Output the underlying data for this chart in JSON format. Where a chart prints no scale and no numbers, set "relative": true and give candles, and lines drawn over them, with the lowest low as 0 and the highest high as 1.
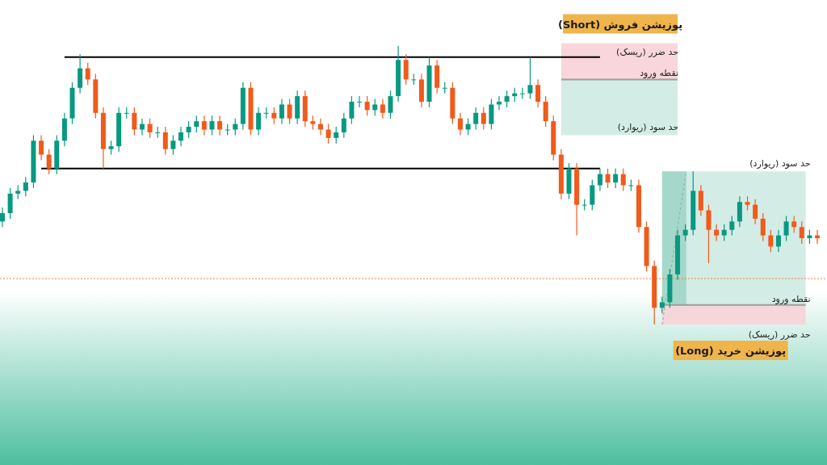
{
  "chart_data": {
    "type": "candlestick",
    "relative": true,
    "categories": [
      null,
      null,
      null,
      null,
      null,
      null,
      null,
      null,
      null,
      null,
      null,
      null,
      null,
      null,
      null,
      null,
      null,
      null,
      null,
      null,
      null,
      null,
      null,
      null,
      null,
      null,
      null,
      null,
      null,
      null,
      null,
      null,
      null,
      null,
      null,
      null,
      null,
      null,
      null,
      null,
      null,
      null,
      null,
      null,
      null,
      null,
      null,
      null,
      null,
      null,
      null,
      null,
      null,
      null,
      null,
      null,
      null,
      null,
      null,
      null,
      null,
      null,
      null,
      null,
      null,
      null,
      null,
      null,
      null,
      null,
      null,
      null,
      null,
      null,
      null,
      null,
      null,
      null,
      null,
      null,
      null,
      null,
      null,
      null,
      null,
      null,
      null,
      null,
      null,
      null,
      null,
      null,
      null,
      null,
      null,
      null,
      null,
      null,
      null,
      null,
      null,
      null,
      null,
      null,
      null,
      null
    ],
    "series": [
      {
        "colors": [
          "#089981",
          "#089981",
          "#089981",
          "#089981",
          "#089981",
          "#f05a1a",
          "#f05a1a",
          "#089981",
          "#089981",
          "#089981",
          "#089981",
          "#f05a1a",
          "#f05a1a",
          "#f05a1a",
          "#089981",
          "#089981",
          "#089981",
          "#f05a1a",
          "#089981",
          "#f05a1a",
          "#089981",
          "#f05a1a",
          "#089981",
          "#089981",
          "#089981",
          "#089981",
          "#f05a1a",
          "#089981",
          "#f05a1a",
          "#089981",
          "#089981",
          "#089981",
          "#f05a1a",
          "#089981",
          "#089981",
          "#f05a1a",
          "#089981",
          "#f05a1a",
          "#089981",
          "#f05a1a",
          "#f05a1a",
          "#f05a1a",
          "#f05a1a",
          "#089981",
          "#089981",
          "#089981",
          "#089981",
          "#f05a1a",
          "#089981",
          "#f05a1a",
          "#089981",
          "#089981",
          "#f05a1a",
          "#089981",
          "#f05a1a",
          "#089981",
          "#f05a1a",
          "#089981",
          "#f05a1a",
          "#f05a1a",
          "#089981",
          "#089981",
          "#f05a1a",
          "#089981",
          "#089981",
          "#089981",
          "#089981",
          "#089981",
          "#089981",
          "#f05a1a",
          "#f05a1a",
          "#f05a1a",
          "#f05a1a",
          "#089981",
          "#f05a1a",
          "#089981",
          "#089981",
          "#089981",
          "#f05a1a",
          "#089981",
          "#f05a1a",
          "#089981",
          "#f05a1a",
          "#f05a1a",
          "#f05a1a",
          "#089981",
          "#089981",
          "#089981",
          "#089981",
          "#089981",
          "#f05a1a",
          "#f05a1a",
          "#f05a1a",
          "#089981",
          "#089981",
          "#089981",
          "#f05a1a",
          "#f05a1a",
          "#f05a1a",
          "#f05a1a",
          "#089981",
          "#089981",
          "#f05a1a",
          "#f05a1a",
          "#089981",
          "#f05a1a"
        ],
        "ohlc": [
          [
            0.37,
            0.42,
            0.35,
            0.4
          ],
          [
            0.4,
            0.49,
            0.38,
            0.47
          ],
          [
            0.47,
            0.5,
            0.45,
            0.48
          ],
          [
            0.48,
            0.53,
            0.46,
            0.51
          ],
          [
            0.51,
            0.68,
            0.49,
            0.66
          ],
          [
            0.66,
            0.68,
            0.59,
            0.61
          ],
          [
            0.61,
            0.63,
            0.54,
            0.56
          ],
          [
            0.56,
            0.68,
            0.54,
            0.66
          ],
          [
            0.66,
            0.76,
            0.64,
            0.74
          ],
          [
            0.74,
            0.87,
            0.72,
            0.85
          ],
          [
            0.85,
            0.97,
            0.83,
            0.92
          ],
          [
            0.92,
            0.94,
            0.86,
            0.88
          ],
          [
            0.88,
            0.9,
            0.74,
            0.76
          ],
          [
            0.76,
            0.78,
            0.56,
            0.63
          ],
          [
            0.63,
            0.66,
            0.61,
            0.64
          ],
          [
            0.64,
            0.78,
            0.62,
            0.76
          ],
          [
            0.76,
            0.78,
            0.74,
            0.76
          ],
          [
            0.76,
            0.78,
            0.68,
            0.7
          ],
          [
            0.7,
            0.74,
            0.68,
            0.72
          ],
          [
            0.72,
            0.74,
            0.67,
            0.69
          ],
          [
            0.69,
            0.71,
            0.67,
            0.69
          ],
          [
            0.69,
            0.71,
            0.61,
            0.63
          ],
          [
            0.63,
            0.68,
            0.61,
            0.66
          ],
          [
            0.66,
            0.71,
            0.64,
            0.69
          ],
          [
            0.69,
            0.73,
            0.67,
            0.71
          ],
          [
            0.71,
            0.75,
            0.69,
            0.73
          ],
          [
            0.73,
            0.75,
            0.68,
            0.7
          ],
          [
            0.7,
            0.75,
            0.68,
            0.73
          ],
          [
            0.73,
            0.75,
            0.68,
            0.7
          ],
          [
            0.7,
            0.72,
            0.68,
            0.7
          ],
          [
            0.7,
            0.74,
            0.68,
            0.72
          ],
          [
            0.72,
            0.87,
            0.7,
            0.85
          ],
          [
            0.85,
            0.87,
            0.68,
            0.7
          ],
          [
            0.7,
            0.78,
            0.68,
            0.76
          ],
          [
            0.76,
            0.78,
            0.74,
            0.76
          ],
          [
            0.76,
            0.78,
            0.72,
            0.74
          ],
          [
            0.74,
            0.81,
            0.72,
            0.79
          ],
          [
            0.79,
            0.81,
            0.72,
            0.74
          ],
          [
            0.74,
            0.84,
            0.72,
            0.82
          ],
          [
            0.82,
            0.84,
            0.71,
            0.73
          ],
          [
            0.73,
            0.75,
            0.7,
            0.72
          ],
          [
            0.72,
            0.74,
            0.68,
            0.7
          ],
          [
            0.7,
            0.72,
            0.65,
            0.67
          ],
          [
            0.67,
            0.71,
            0.65,
            0.69
          ],
          [
            0.69,
            0.76,
            0.67,
            0.74
          ],
          [
            0.74,
            0.82,
            0.72,
            0.8
          ],
          [
            0.8,
            0.82,
            0.78,
            0.8
          ],
          [
            0.8,
            0.82,
            0.75,
            0.77
          ],
          [
            0.77,
            0.81,
            0.75,
            0.79
          ],
          [
            0.79,
            0.81,
            0.74,
            0.76
          ],
          [
            0.76,
            0.84,
            0.74,
            0.82
          ],
          [
            0.82,
            1.0,
            0.8,
            0.95
          ],
          [
            0.95,
            0.97,
            0.86,
            0.88
          ],
          [
            0.88,
            0.9,
            0.86,
            0.88
          ],
          [
            0.88,
            0.9,
            0.78,
            0.8
          ],
          [
            0.8,
            0.96,
            0.78,
            0.93
          ],
          [
            0.93,
            0.95,
            0.83,
            0.85
          ],
          [
            0.85,
            0.87,
            0.83,
            0.85
          ],
          [
            0.85,
            0.87,
            0.72,
            0.74
          ],
          [
            0.74,
            0.76,
            0.68,
            0.7
          ],
          [
            0.7,
            0.74,
            0.68,
            0.72
          ],
          [
            0.72,
            0.78,
            0.7,
            0.76
          ],
          [
            0.76,
            0.78,
            0.7,
            0.72
          ],
          [
            0.72,
            0.81,
            0.7,
            0.79
          ],
          [
            0.79,
            0.82,
            0.77,
            0.8
          ],
          [
            0.8,
            0.84,
            0.78,
            0.82
          ],
          [
            0.82,
            0.85,
            0.8,
            0.83
          ],
          [
            0.83,
            0.85,
            0.81,
            0.83
          ],
          [
            0.83,
            0.96,
            0.81,
            0.86
          ],
          [
            0.86,
            0.88,
            0.78,
            0.8
          ],
          [
            0.8,
            0.82,
            0.71,
            0.73
          ],
          [
            0.73,
            0.75,
            0.59,
            0.61
          ],
          [
            0.61,
            0.63,
            0.45,
            0.47
          ],
          [
            0.47,
            0.58,
            0.45,
            0.56
          ],
          [
            0.56,
            0.58,
            0.32,
            0.43
          ],
          [
            0.43,
            0.45,
            0.41,
            0.43
          ],
          [
            0.43,
            0.52,
            0.41,
            0.5
          ],
          [
            0.5,
            0.56,
            0.48,
            0.54
          ],
          [
            0.54,
            0.56,
            0.49,
            0.51
          ],
          [
            0.51,
            0.56,
            0.49,
            0.54
          ],
          [
            0.54,
            0.56,
            0.48,
            0.5
          ],
          [
            0.5,
            0.52,
            0.48,
            0.5
          ],
          [
            0.5,
            0.52,
            0.33,
            0.35
          ],
          [
            0.35,
            0.37,
            0.19,
            0.21
          ],
          [
            0.21,
            0.23,
            0.0,
            0.06
          ],
          [
            0.06,
            0.1,
            0.04,
            0.08
          ],
          [
            0.08,
            0.2,
            0.06,
            0.18
          ],
          [
            0.18,
            0.34,
            0.16,
            0.32
          ],
          [
            0.32,
            0.36,
            0.3,
            0.34
          ],
          [
            0.34,
            0.55,
            0.32,
            0.48
          ],
          [
            0.48,
            0.5,
            0.39,
            0.41
          ],
          [
            0.41,
            0.43,
            0.22,
            0.34
          ],
          [
            0.34,
            0.36,
            0.3,
            0.32
          ],
          [
            0.32,
            0.36,
            0.3,
            0.34
          ],
          [
            0.34,
            0.39,
            0.32,
            0.37
          ],
          [
            0.37,
            0.46,
            0.35,
            0.44
          ],
          [
            0.44,
            0.46,
            0.41,
            0.43
          ],
          [
            0.43,
            0.45,
            0.36,
            0.38
          ],
          [
            0.38,
            0.4,
            0.3,
            0.32
          ],
          [
            0.32,
            0.34,
            0.26,
            0.28
          ],
          [
            0.28,
            0.34,
            0.26,
            0.32
          ],
          [
            0.32,
            0.39,
            0.3,
            0.37
          ],
          [
            0.37,
            0.39,
            0.33,
            0.35
          ],
          [
            0.35,
            0.37,
            0.29,
            0.31
          ],
          [
            0.31,
            0.34,
            0.29,
            0.32
          ],
          [
            0.32,
            0.34,
            0.29,
            0.31
          ]
        ]
      }
    ],
    "ref_lines": [
      {
        "axis": "y",
        "value": 0.96,
        "color": "#000000"
      },
      {
        "axis": "y",
        "value": 0.56,
        "color": "#000000"
      },
      {
        "axis": "y",
        "value": 0.165,
        "color": "#f08040",
        "line_style": "dotted"
      },
      {
        "axis": "y",
        "value": 0.88,
        "color": "#9e9e9e",
        "label": "نقطه ورود"
      },
      {
        "axis": "y",
        "value": 0.07,
        "color": "#9e9e9e",
        "label": "نقطه ورود"
      }
    ],
    "bands": [
      {
        "axis": "y",
        "from": 0.88,
        "to": 1.01,
        "color": "#f9d6db",
        "label": "حد ضرر (ریسک)"
      },
      {
        "axis": "y",
        "from": 0.68,
        "to": 0.88,
        "color": "#d3ece6",
        "label": "حد سود (ریوارد)"
      },
      {
        "axis": "y",
        "from": 0.07,
        "to": 0.55,
        "color": "#d3ece6",
        "label": "حد سود (ریوارد)"
      },
      {
        "axis": "y",
        "from": 0.0,
        "to": 0.07,
        "color": "#f5d6da",
        "label": "حد ضرر (ریسک)"
      }
    ],
    "annotations": [
      "پوزیشن فروش (Short)",
      "پوزیشن خرید (Long)"
    ]
  }
}
